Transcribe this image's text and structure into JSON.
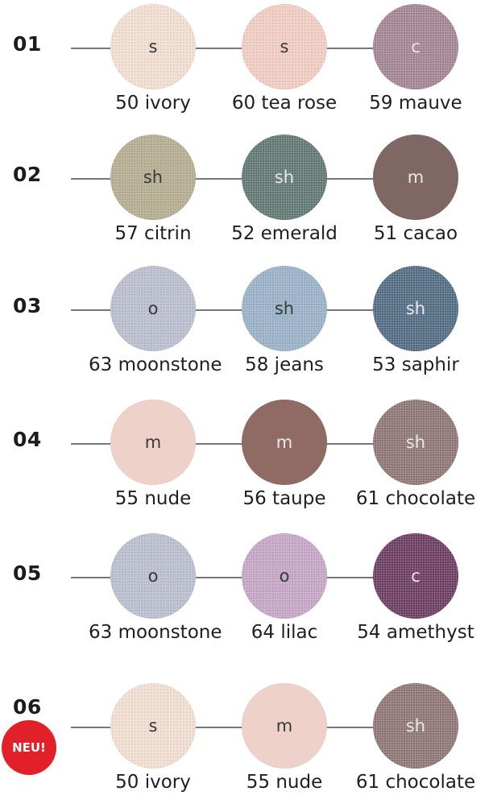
{
  "palettes": [
    {
      "number": "01",
      "shades": [
        {
          "finish": "s",
          "label": "50 ivory",
          "color": "#f2ddd0",
          "finish_text": "dark",
          "sparkle": true
        },
        {
          "finish": "s",
          "label": "60 tea rose",
          "color": "#f1cbc1",
          "finish_text": "dark",
          "sparkle": true
        },
        {
          "finish": "c",
          "label": "59 mauve",
          "color": "#a08190",
          "finish_text": "light",
          "sparkle": true
        }
      ]
    },
    {
      "number": "02",
      "shades": [
        {
          "finish": "sh",
          "label": "57 citrin",
          "color": "#b3ab8e",
          "finish_text": "dark",
          "sparkle": true
        },
        {
          "finish": "sh",
          "label": "52 emerald",
          "color": "#5d7470",
          "finish_text": "light",
          "sparkle": true
        },
        {
          "finish": "m",
          "label": "51 cacao",
          "color": "#7f6864",
          "finish_text": "light",
          "sparkle": false
        }
      ]
    },
    {
      "number": "03",
      "shades": [
        {
          "finish": "o",
          "label": "63 moonstone",
          "color": "#b8bccd",
          "finish_text": "dark",
          "sparkle": true
        },
        {
          "finish": "sh",
          "label": "58 jeans",
          "color": "#96afc7",
          "finish_text": "dark",
          "sparkle": true
        },
        {
          "finish": "sh",
          "label": "53 saphir",
          "color": "#4e6880",
          "finish_text": "light",
          "sparkle": true
        }
      ]
    },
    {
      "number": "04",
      "shades": [
        {
          "finish": "m",
          "label": "55 nude",
          "color": "#eed2ca",
          "finish_text": "dark",
          "sparkle": false
        },
        {
          "finish": "m",
          "label": "56 taupe",
          "color": "#8f6b64",
          "finish_text": "light",
          "sparkle": false
        },
        {
          "finish": "sh",
          "label": "61 chocolate",
          "color": "#8c7272",
          "finish_text": "light",
          "sparkle": true
        }
      ]
    },
    {
      "number": "05",
      "shades": [
        {
          "finish": "o",
          "label": "63 moonstone",
          "color": "#b8bccd",
          "finish_text": "dark",
          "sparkle": true
        },
        {
          "finish": "o",
          "label": "64 lilac",
          "color": "#c4a3c5",
          "finish_text": "dark",
          "sparkle": true
        },
        {
          "finish": "c",
          "label": "54 amethyst",
          "color": "#69385f",
          "finish_text": "light",
          "sparkle": true
        }
      ]
    },
    {
      "number": "06",
      "shades": [
        {
          "finish": "s",
          "label": "50 ivory",
          "color": "#f2ddd0",
          "finish_text": "dark",
          "sparkle": true
        },
        {
          "finish": "m",
          "label": "55 nude",
          "color": "#eed2ca",
          "finish_text": "dark",
          "sparkle": false
        },
        {
          "finish": "sh",
          "label": "61 chocolate",
          "color": "#8c7272",
          "finish_text": "light",
          "sparkle": true
        }
      ]
    }
  ],
  "badge": {
    "text": "NEU!",
    "color": "#e2202a"
  }
}
